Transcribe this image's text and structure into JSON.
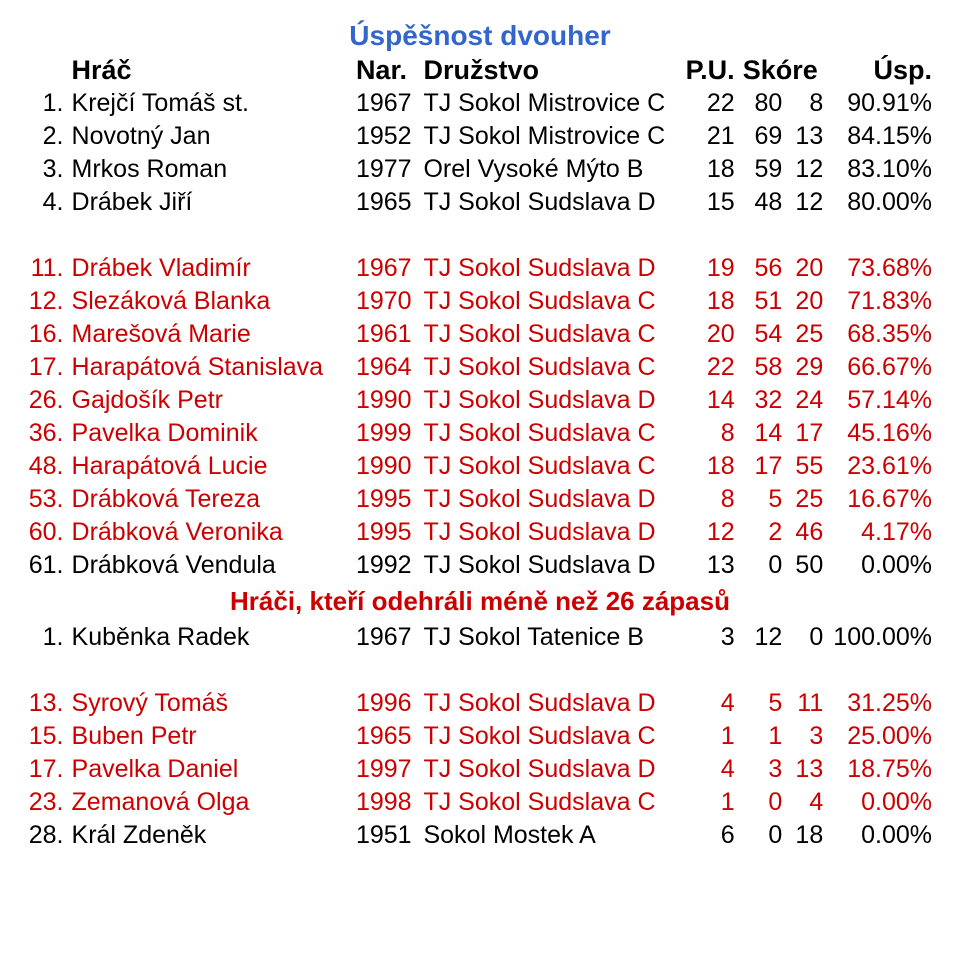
{
  "colors": {
    "title": "#3366cc",
    "black": "#000000",
    "red": "#cc0000",
    "subtitle": "#cc0000"
  },
  "title": "Úspěšnost dvouher",
  "subtitle": "Hráči, kteří odehráli méně než 26 zápasů",
  "headers": {
    "name": "Hráč",
    "year": "Nar.",
    "team": "Družstvo",
    "pu": "P.U.",
    "score": "Skóre",
    "pct": "Úsp."
  },
  "rows1": [
    {
      "rank": "1.",
      "name": "Krejčí Tomáš st.",
      "year": "1967",
      "team": "TJ Sokol Mistrovice C",
      "pu": "22",
      "s1": "80",
      "s2": "8",
      "pct": "90.91%",
      "color": "black"
    },
    {
      "rank": "2.",
      "name": "Novotný Jan",
      "year": "1952",
      "team": "TJ Sokol Mistrovice C",
      "pu": "21",
      "s1": "69",
      "s2": "13",
      "pct": "84.15%",
      "color": "black"
    },
    {
      "rank": "3.",
      "name": "Mrkos Roman",
      "year": "1977",
      "team": "Orel Vysoké Mýto B",
      "pu": "18",
      "s1": "59",
      "s2": "12",
      "pct": "83.10%",
      "color": "black"
    },
    {
      "rank": "4.",
      "name": "Drábek Jiří",
      "year": "1965",
      "team": "TJ Sokol Sudslava D",
      "pu": "15",
      "s1": "48",
      "s2": "12",
      "pct": "80.00%",
      "color": "black"
    }
  ],
  "rows2": [
    {
      "rank": "11.",
      "name": "Drábek Vladimír",
      "year": "1967",
      "team": "TJ Sokol Sudslava D",
      "pu": "19",
      "s1": "56",
      "s2": "20",
      "pct": "73.68%",
      "color": "red"
    },
    {
      "rank": "12.",
      "name": "Slezáková Blanka",
      "year": "1970",
      "team": "TJ Sokol Sudslava C",
      "pu": "18",
      "s1": "51",
      "s2": "20",
      "pct": "71.83%",
      "color": "red"
    },
    {
      "rank": "16.",
      "name": "Marešová Marie",
      "year": "1961",
      "team": "TJ Sokol Sudslava C",
      "pu": "20",
      "s1": "54",
      "s2": "25",
      "pct": "68.35%",
      "color": "red"
    },
    {
      "rank": "17.",
      "name": "Harapátová Stanislava",
      "year": "1964",
      "team": "TJ Sokol Sudslava C",
      "pu": "22",
      "s1": "58",
      "s2": "29",
      "pct": "66.67%",
      "color": "red"
    },
    {
      "rank": "26.",
      "name": "Gajdošík Petr",
      "year": "1990",
      "team": "TJ Sokol Sudslava D",
      "pu": "14",
      "s1": "32",
      "s2": "24",
      "pct": "57.14%",
      "color": "red"
    },
    {
      "rank": "36.",
      "name": "Pavelka Dominik",
      "year": "1999",
      "team": "TJ Sokol Sudslava C",
      "pu": "8",
      "s1": "14",
      "s2": "17",
      "pct": "45.16%",
      "color": "red"
    },
    {
      "rank": "48.",
      "name": "Harapátová Lucie",
      "year": "1990",
      "team": "TJ Sokol Sudslava C",
      "pu": "18",
      "s1": "17",
      "s2": "55",
      "pct": "23.61%",
      "color": "red"
    },
    {
      "rank": "53.",
      "name": "Drábková Tereza",
      "year": "1995",
      "team": "TJ Sokol Sudslava D",
      "pu": "8",
      "s1": "5",
      "s2": "25",
      "pct": "16.67%",
      "color": "red"
    },
    {
      "rank": "60.",
      "name": "Drábková Veronika",
      "year": "1995",
      "team": "TJ Sokol Sudslava D",
      "pu": "12",
      "s1": "2",
      "s2": "46",
      "pct": "4.17%",
      "color": "red"
    },
    {
      "rank": "61.",
      "name": "Drábková Vendula",
      "year": "1992",
      "team": "TJ Sokol Sudslava D",
      "pu": "13",
      "s1": "0",
      "s2": "50",
      "pct": "0.00%",
      "color": "black"
    }
  ],
  "rows3": [
    {
      "rank": "1.",
      "name": "Kuběnka Radek",
      "year": "1967",
      "team": "TJ Sokol Tatenice B",
      "pu": "3",
      "s1": "12",
      "s2": "0",
      "pct": "100.00%",
      "color": "black"
    }
  ],
  "rows4": [
    {
      "rank": "13.",
      "name": "Syrový Tomáš",
      "year": "1996",
      "team": "TJ Sokol Sudslava D",
      "pu": "4",
      "s1": "5",
      "s2": "11",
      "pct": "31.25%",
      "color": "red"
    },
    {
      "rank": "15.",
      "name": "Buben Petr",
      "year": "1965",
      "team": "TJ Sokol Sudslava C",
      "pu": "1",
      "s1": "1",
      "s2": "3",
      "pct": "25.00%",
      "color": "red"
    },
    {
      "rank": "17.",
      "name": "Pavelka Daniel",
      "year": "1997",
      "team": "TJ Sokol Sudslava D",
      "pu": "4",
      "s1": "3",
      "s2": "13",
      "pct": "18.75%",
      "color": "red"
    },
    {
      "rank": "23.",
      "name": "Zemanová Olga",
      "year": "1998",
      "team": "TJ Sokol Sudslava C",
      "pu": "1",
      "s1": "0",
      "s2": "4",
      "pct": "0.00%",
      "color": "red"
    },
    {
      "rank": "28.",
      "name": "Král Zdeněk",
      "year": "1951",
      "team": "Sokol Mostek A",
      "pu": "6",
      "s1": "0",
      "s2": "18",
      "pct": "0.00%",
      "color": "black"
    }
  ]
}
